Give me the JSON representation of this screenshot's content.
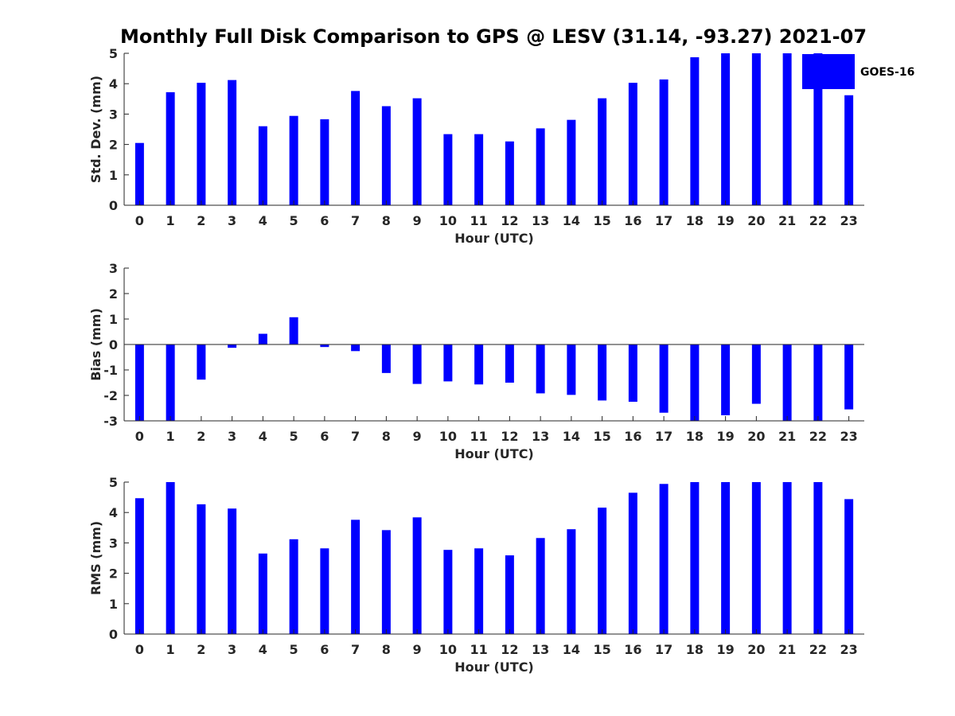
{
  "chart_data": {
    "title": "Monthly Full Disk Comparison to GPS @ LESV (31.14, -93.27) 2021-07",
    "bar_color": "#0000ff",
    "legend": {
      "label": "GOES-16",
      "placement": "top-right"
    },
    "panels": [
      {
        "type": "bar",
        "name": "std-dev",
        "ylabel": "Std. Dev. (mm)",
        "xlabel": "Hour (UTC)",
        "ylim": [
          0,
          5
        ],
        "yticks": [
          0,
          1,
          2,
          3,
          4,
          5
        ],
        "categories": [
          "0",
          "1",
          "2",
          "3",
          "4",
          "5",
          "6",
          "7",
          "8",
          "9",
          "10",
          "11",
          "12",
          "13",
          "14",
          "15",
          "16",
          "17",
          "18",
          "19",
          "20",
          "21",
          "22",
          "23"
        ],
        "values": [
          2.05,
          3.72,
          4.03,
          4.12,
          2.6,
          2.94,
          2.83,
          3.76,
          3.26,
          3.52,
          2.34,
          2.34,
          2.1,
          2.53,
          2.81,
          3.52,
          4.03,
          4.14,
          4.87,
          5.0,
          5.0,
          5.0,
          5.0,
          3.62
        ]
      },
      {
        "type": "bar",
        "name": "bias",
        "ylabel": "Bias (mm)",
        "xlabel": "Hour (UTC)",
        "ylim": [
          -3,
          3
        ],
        "yticks": [
          -3,
          -2,
          -1,
          0,
          1,
          2,
          3
        ],
        "categories": [
          "0",
          "1",
          "2",
          "3",
          "4",
          "5",
          "6",
          "7",
          "8",
          "9",
          "10",
          "11",
          "12",
          "13",
          "14",
          "15",
          "16",
          "17",
          "18",
          "19",
          "20",
          "21",
          "22",
          "23"
        ],
        "values": [
          -3.0,
          -3.0,
          -1.38,
          -0.13,
          0.42,
          1.07,
          -0.1,
          -0.26,
          -1.12,
          -1.55,
          -1.45,
          -1.57,
          -1.5,
          -1.92,
          -1.98,
          -2.2,
          -2.25,
          -2.68,
          -3.0,
          -2.78,
          -2.33,
          -3.0,
          -3.0,
          -2.55
        ]
      },
      {
        "type": "bar",
        "name": "rms",
        "ylabel": "RMS (mm)",
        "xlabel": "Hour (UTC)",
        "ylim": [
          0,
          5
        ],
        "yticks": [
          0,
          1,
          2,
          3,
          4,
          5
        ],
        "categories": [
          "0",
          "1",
          "2",
          "3",
          "4",
          "5",
          "6",
          "7",
          "8",
          "9",
          "10",
          "11",
          "12",
          "13",
          "14",
          "15",
          "16",
          "17",
          "18",
          "19",
          "20",
          "21",
          "22",
          "23"
        ],
        "values": [
          4.47,
          5.0,
          4.27,
          4.13,
          2.65,
          3.12,
          2.82,
          3.76,
          3.42,
          3.84,
          2.77,
          2.82,
          2.59,
          3.16,
          3.45,
          4.16,
          4.65,
          4.94,
          5.0,
          5.0,
          5.0,
          5.0,
          5.0,
          4.44
        ]
      }
    ]
  }
}
